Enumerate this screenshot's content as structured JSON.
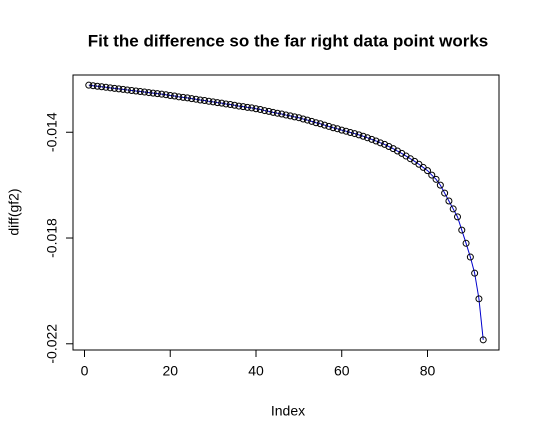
{
  "chart_data": {
    "type": "scatter",
    "title": "Fit the difference so the far right data point works",
    "xlabel": "Index",
    "ylabel": "diff(gf2)",
    "x": [
      1,
      2,
      3,
      4,
      5,
      6,
      7,
      8,
      9,
      10,
      11,
      12,
      13,
      14,
      15,
      16,
      17,
      18,
      19,
      20,
      21,
      22,
      23,
      24,
      25,
      26,
      27,
      28,
      29,
      30,
      31,
      32,
      33,
      34,
      35,
      36,
      37,
      38,
      39,
      40,
      41,
      42,
      43,
      44,
      45,
      46,
      47,
      48,
      49,
      50,
      51,
      52,
      53,
      54,
      55,
      56,
      57,
      58,
      59,
      60,
      61,
      62,
      63,
      64,
      65,
      66,
      67,
      68,
      69,
      70,
      71,
      72,
      73,
      74,
      75,
      76,
      77,
      78,
      79,
      80,
      81,
      82,
      83,
      84,
      85,
      86,
      87,
      88,
      89,
      90,
      91,
      92,
      93
    ],
    "series": [
      {
        "values": [
          -0.01222,
          -0.01224,
          -0.01226,
          -0.01228,
          -0.0123,
          -0.01232,
          -0.01234,
          -0.01236,
          -0.01238,
          -0.0124,
          -0.01242,
          -0.01244,
          -0.01246,
          -0.01248,
          -0.0125,
          -0.01252,
          -0.01254,
          -0.01256,
          -0.01258,
          -0.01261,
          -0.01263,
          -0.01266,
          -0.01268,
          -0.0127,
          -0.01273,
          -0.01275,
          -0.01278,
          -0.0128,
          -0.01283,
          -0.01285,
          -0.01288,
          -0.0129,
          -0.01293,
          -0.01295,
          -0.01298,
          -0.01301,
          -0.01303,
          -0.01306,
          -0.01308,
          -0.01311,
          -0.01314,
          -0.01318,
          -0.01321,
          -0.01325,
          -0.01328,
          -0.01331,
          -0.01335,
          -0.01338,
          -0.01342,
          -0.01345,
          -0.0135,
          -0.01354,
          -0.01359,
          -0.01364,
          -0.01368,
          -0.01373,
          -0.01378,
          -0.01383,
          -0.01387,
          -0.01392,
          -0.01396,
          -0.01401,
          -0.01405,
          -0.0141,
          -0.01415,
          -0.01421,
          -0.01427,
          -0.01433,
          -0.0144,
          -0.01446,
          -0.01454,
          -0.01462,
          -0.01471,
          -0.0148,
          -0.0149,
          -0.015,
          -0.0151,
          -0.01521,
          -0.01533,
          -0.01545,
          -0.01562,
          -0.01578,
          -0.016,
          -0.0163,
          -0.0166,
          -0.0169,
          -0.0172,
          -0.0177,
          -0.0182,
          -0.01872,
          -0.01933,
          -0.0203,
          -0.02185
        ],
        "color": "#000000",
        "line_color": "#0000cc"
      }
    ],
    "xlim": [
      -2.68,
      96.68
    ],
    "xticks": [
      0,
      20,
      40,
      60,
      80
    ],
    "ylim": [
      -0.022235,
      -0.011835
    ],
    "yticks": [
      -0.014,
      -0.018,
      -0.022
    ]
  }
}
